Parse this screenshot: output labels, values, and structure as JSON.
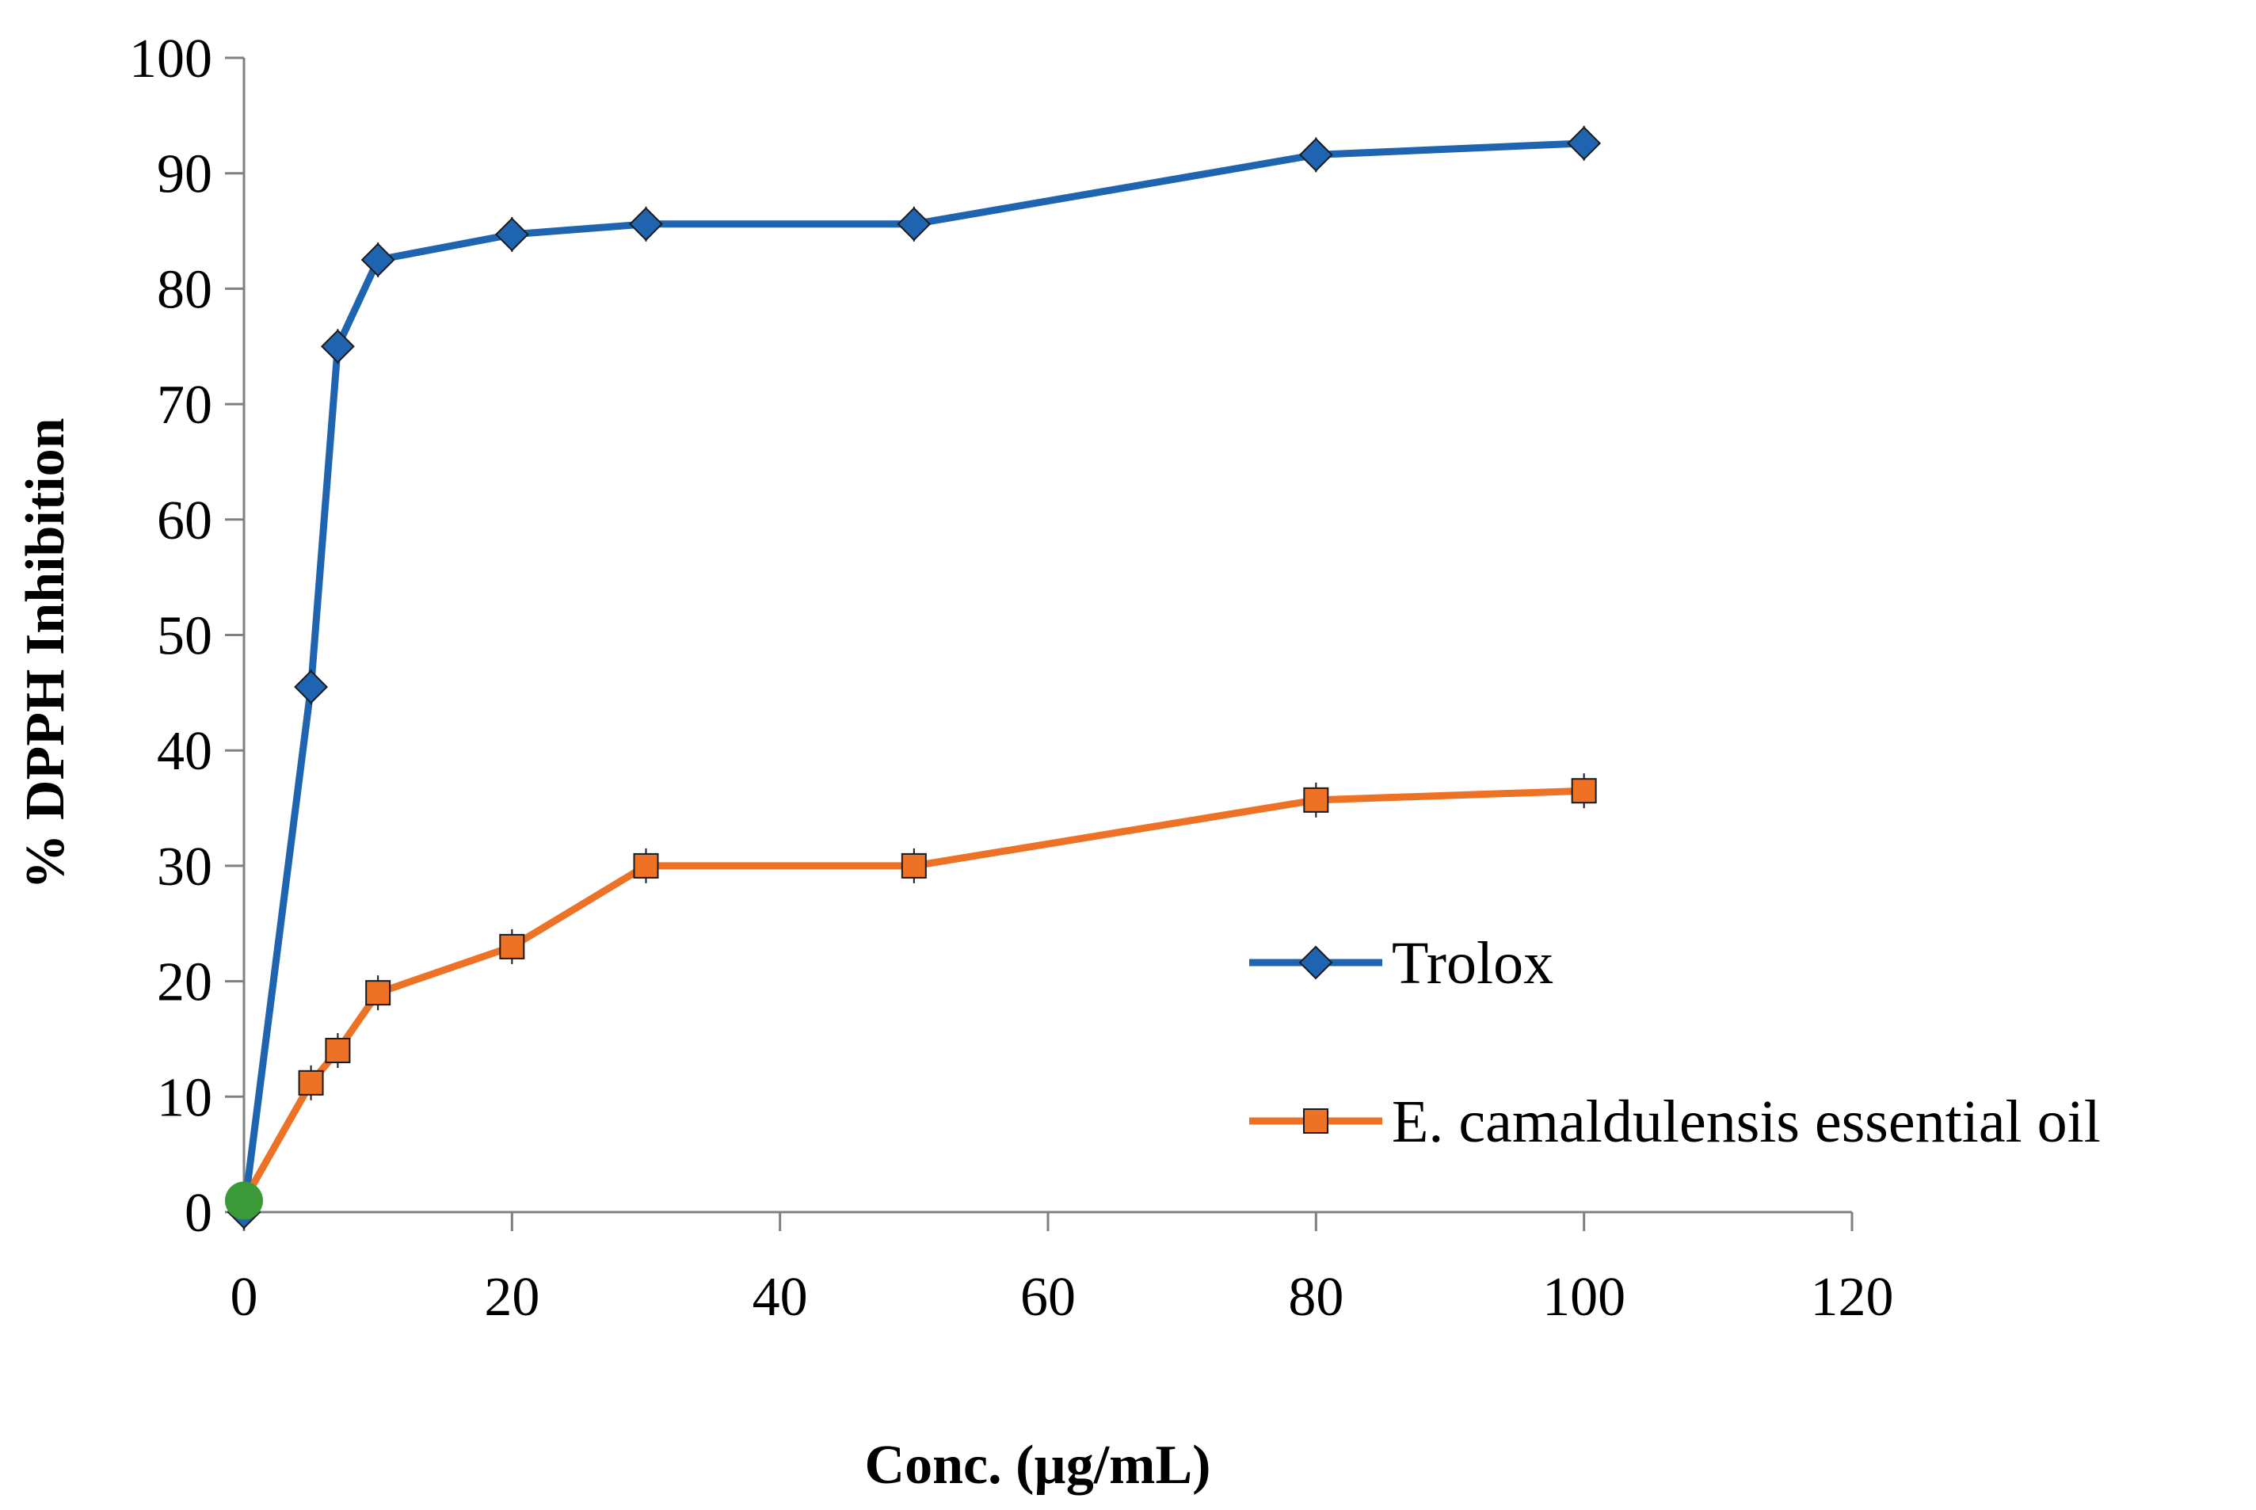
{
  "chart_data": {
    "type": "line",
    "title": "",
    "xlabel": "Conc. (µg/mL)",
    "ylabel": "% DPPH Inhibition",
    "xlim": [
      0,
      120
    ],
    "ylim": [
      0,
      100
    ],
    "x_ticks": [
      0,
      20,
      40,
      60,
      80,
      100,
      120
    ],
    "y_ticks": [
      0,
      10,
      20,
      30,
      40,
      50,
      60,
      70,
      80,
      90,
      100
    ],
    "grid": false,
    "legend_position": "lower-right",
    "series": [
      {
        "name": "Trolox",
        "color": "#1F64B0",
        "marker": "diamond",
        "x": [
          0,
          5,
          7,
          10,
          20,
          30,
          50,
          80,
          100
        ],
        "y": [
          0,
          45.5,
          75,
          82.5,
          84.7,
          85.6,
          85.6,
          91.6,
          92.6
        ]
      },
      {
        "name": "E. camaldulensis essential oil",
        "color": "#ED7225",
        "marker": "square",
        "x": [
          0,
          5,
          7,
          10,
          20,
          30,
          50,
          80,
          100
        ],
        "y": [
          1,
          11.2,
          14,
          19,
          23,
          30,
          30,
          35.7,
          36.5
        ]
      }
    ],
    "extra_points": [
      {
        "x": 0,
        "y": 1,
        "color": "#3A9A3A",
        "marker": "circle"
      }
    ]
  }
}
